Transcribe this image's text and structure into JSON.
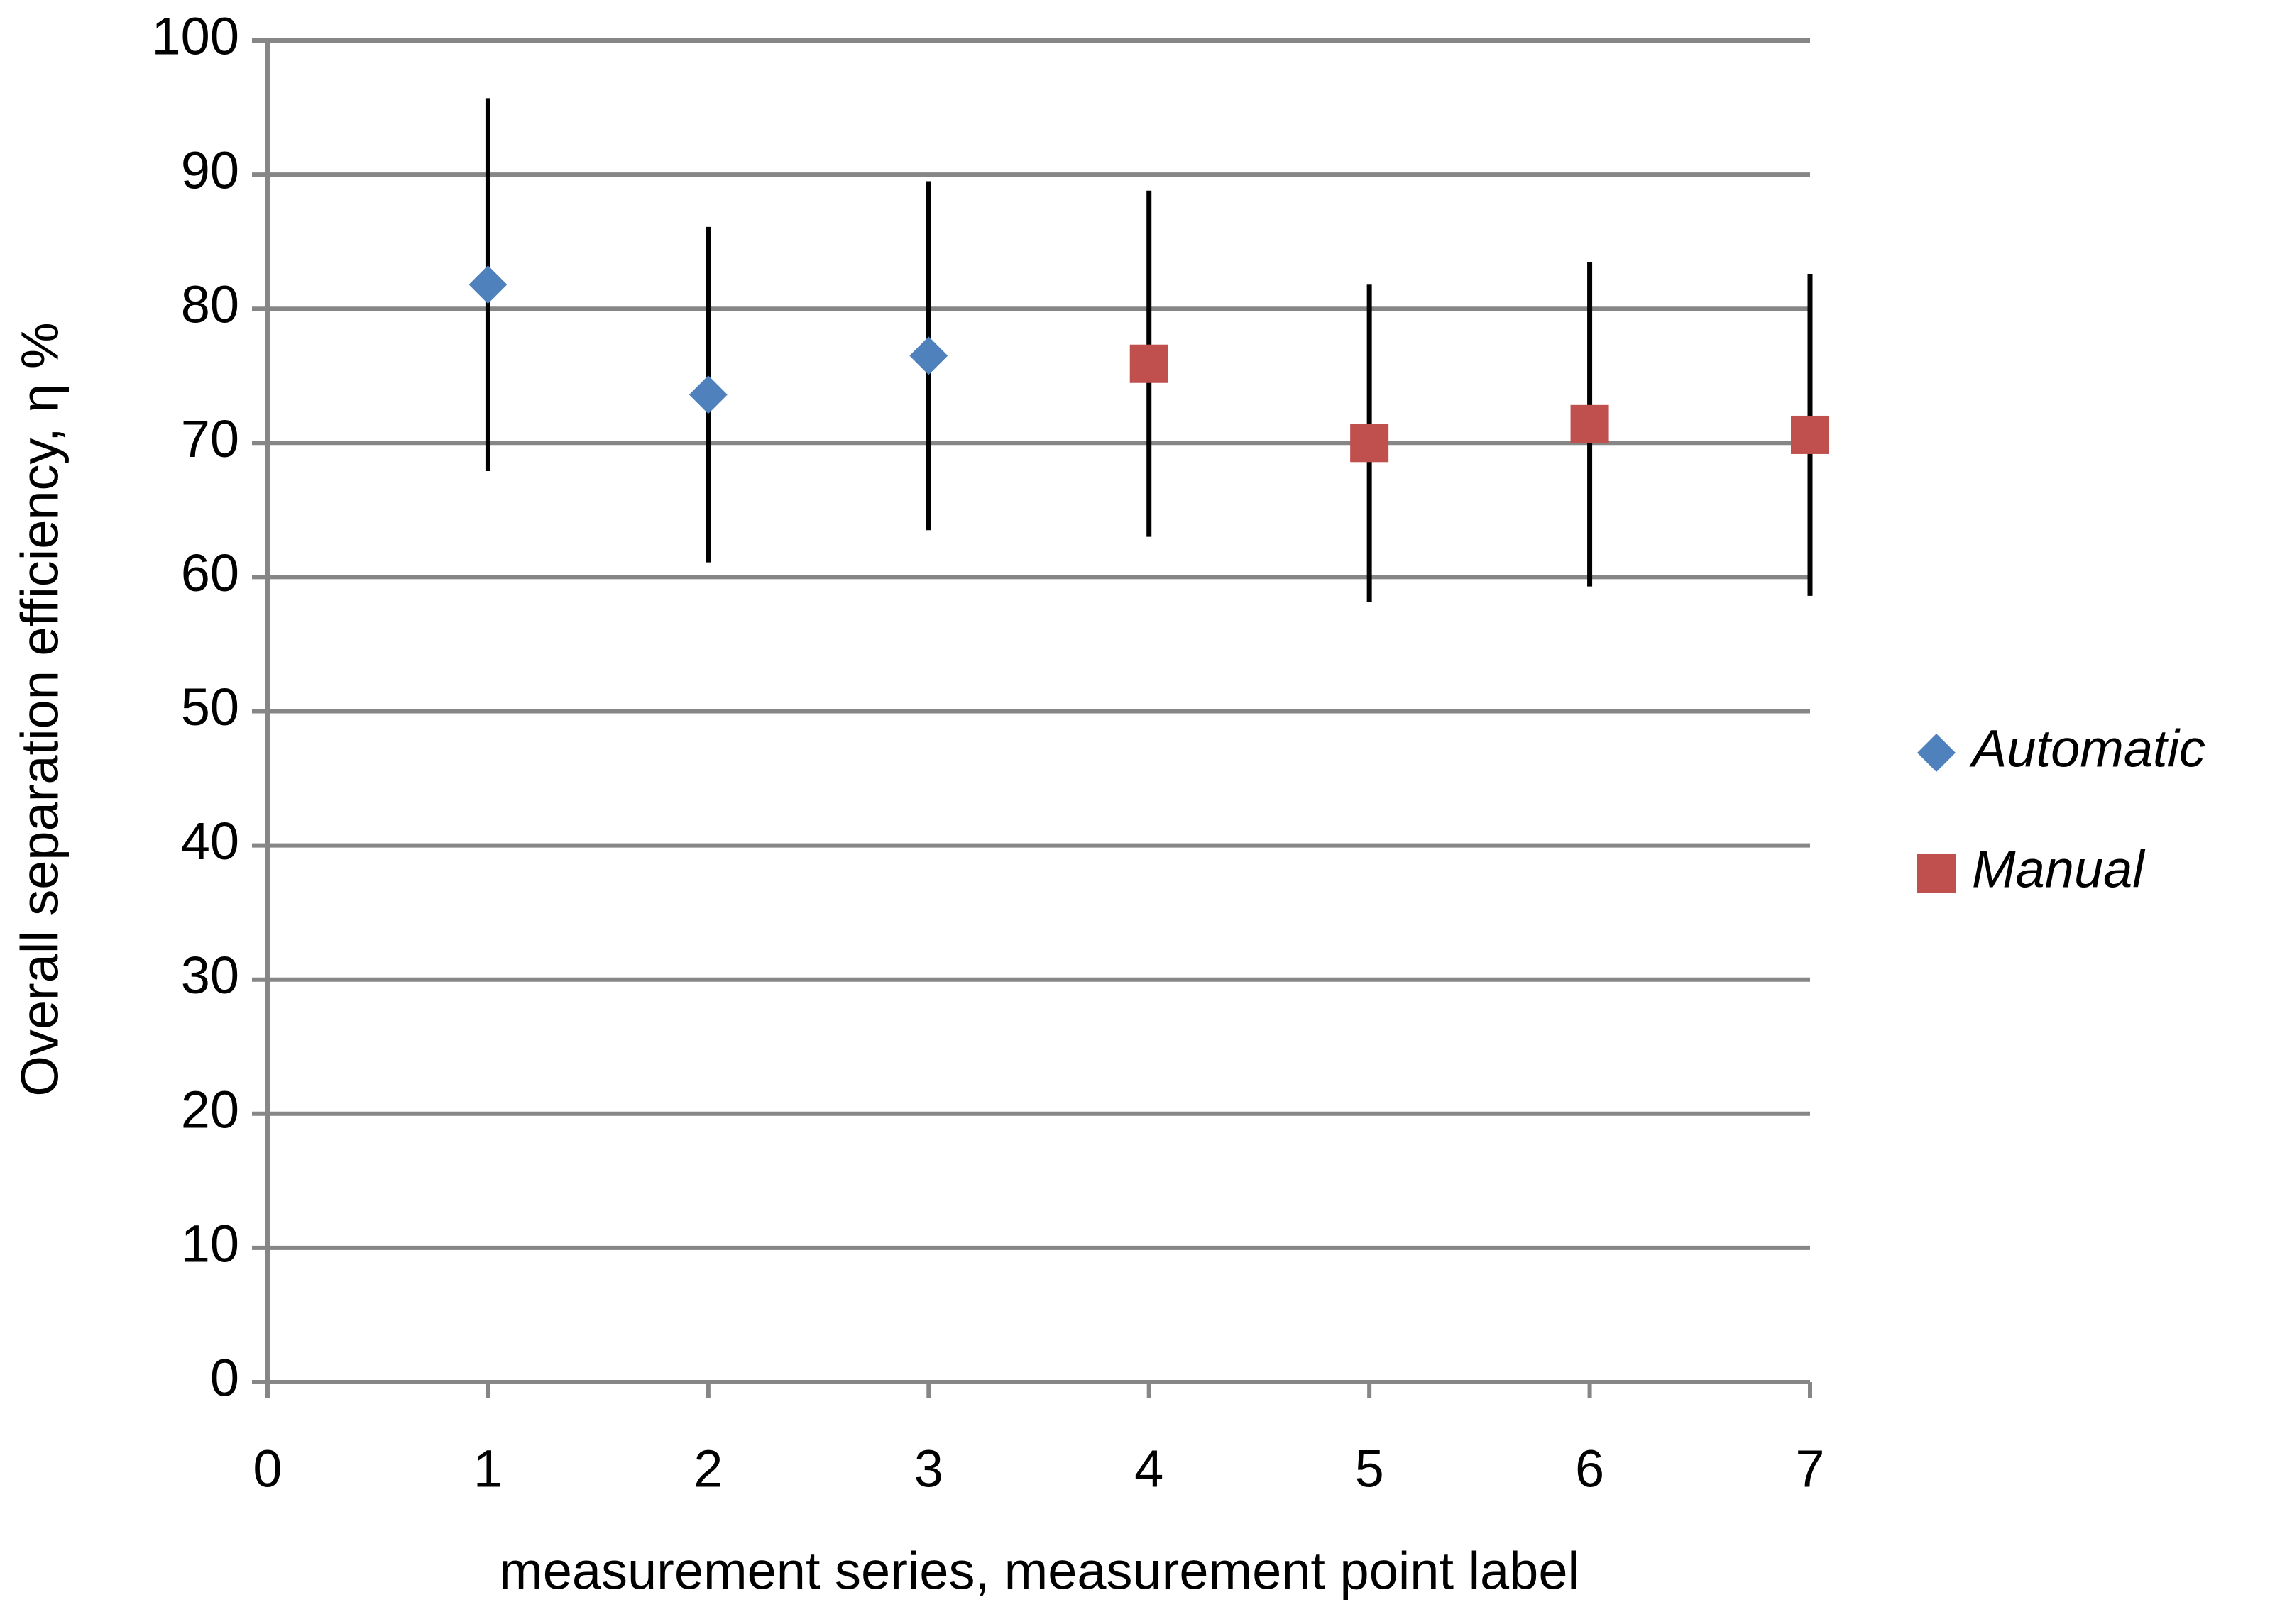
{
  "chart_data": {
    "type": "scatter",
    "x_label": "measurement series, measurement point label",
    "y_label": "Overall separation efficiency, η %",
    "xlim": [
      0,
      7
    ],
    "xticks": [
      0,
      1,
      2,
      3,
      4,
      5,
      6,
      7
    ],
    "ylim": [
      0,
      100
    ],
    "yticks": [
      0,
      10,
      20,
      30,
      40,
      50,
      60,
      70,
      80,
      90,
      100
    ],
    "grid": true,
    "legend": "right",
    "series": [
      {
        "name": "Automatic",
        "color": "#4f81bd",
        "marker": "diamond",
        "x": [
          1,
          2,
          3
        ],
        "values": [
          81.8,
          73.6,
          76.5
        ],
        "errors": [
          13.9,
          12.5,
          13
        ]
      },
      {
        "name": "Manual",
        "color": "#c0504d",
        "marker": "square",
        "x": [
          4,
          5,
          6,
          7
        ],
        "values": [
          75.9,
          70,
          71.4,
          70.6
        ],
        "errors": [
          12.9,
          11.85,
          12.1,
          12
        ]
      }
    ]
  }
}
